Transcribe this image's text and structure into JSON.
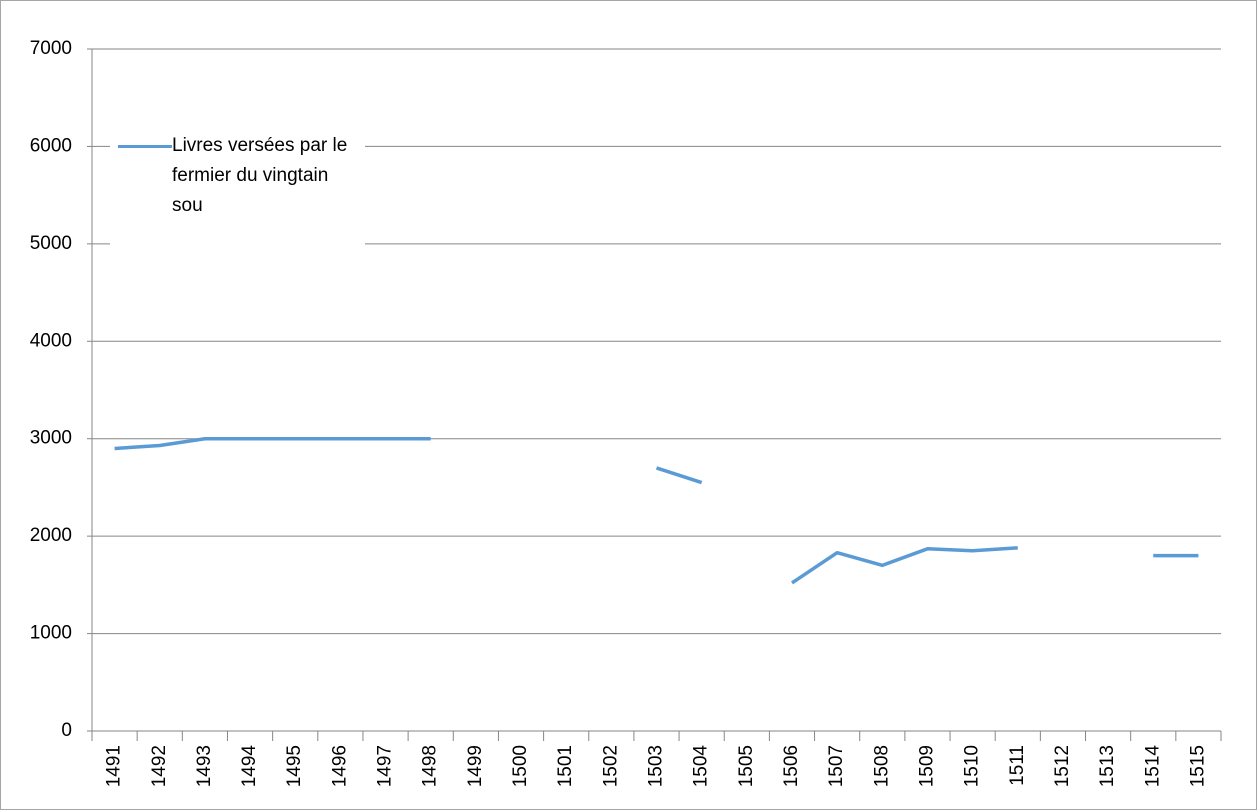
{
  "chart_data": {
    "type": "line",
    "categories": [
      "1491",
      "1492",
      "1493",
      "1494",
      "1495",
      "1496",
      "1497",
      "1498",
      "1499",
      "1500",
      "1501",
      "1502",
      "1503",
      "1504",
      "1505",
      "1506",
      "1507",
      "1508",
      "1509",
      "1510",
      "1511",
      "1512",
      "1513",
      "1514",
      "1515"
    ],
    "series": [
      {
        "name": "Livres versées par le fermier du vingtain sou",
        "color": "#5b9bd5",
        "values": [
          2900,
          2930,
          3000,
          3000,
          3000,
          3000,
          3000,
          3000,
          null,
          null,
          null,
          null,
          2700,
          2550,
          null,
          1520,
          1830,
          1700,
          1870,
          1850,
          1880,
          null,
          null,
          1800,
          1800
        ]
      }
    ],
    "ylim": [
      0,
      7000
    ],
    "yticks": [
      0,
      1000,
      2000,
      3000,
      4000,
      5000,
      6000,
      7000
    ],
    "grid": true,
    "legend": "top-left"
  }
}
